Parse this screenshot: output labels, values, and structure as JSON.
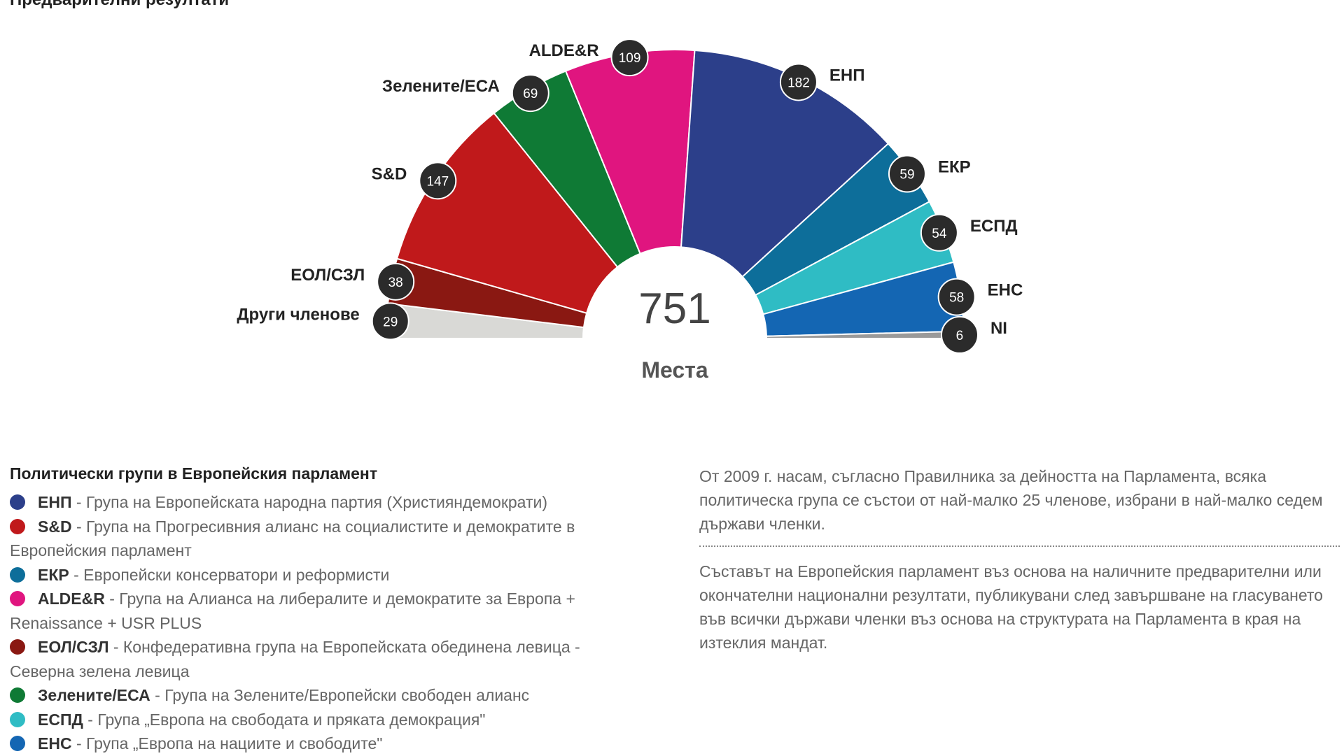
{
  "header": {
    "title": "Предварителни резултати"
  },
  "chart_data": {
    "type": "pie",
    "variant": "semicircle-parliament",
    "center_value": "751",
    "center_label": "Места",
    "total": 751,
    "slices": [
      {
        "label": "Други членове",
        "value": 29,
        "color": "#d9d9d6"
      },
      {
        "label": "ЕОЛ/СЗЛ",
        "value": 38,
        "color": "#8a1812"
      },
      {
        "label": "S&D",
        "value": 147,
        "color": "#c0191b"
      },
      {
        "label": "Зелените/ЕСА",
        "value": 69,
        "color": "#0f7a35"
      },
      {
        "label": "ALDE&R",
        "value": 109,
        "color": "#e0157f"
      },
      {
        "label": "ЕНП",
        "value": 182,
        "color": "#2c3f8a"
      },
      {
        "label": "ЕКР",
        "value": 59,
        "color": "#0d6e9a"
      },
      {
        "label": "ЕСПД",
        "value": 54,
        "color": "#2fbcc4"
      },
      {
        "label": "ЕНС",
        "value": 58,
        "color": "#1466b3"
      },
      {
        "label": "NI",
        "value": 6,
        "color": "#9a9a9a"
      }
    ]
  },
  "legend": {
    "title": "Политически групи в Европейския парламент",
    "items": [
      {
        "abbr": "ЕНП",
        "desc": " - Група на Европейската народна партия (Християндемократи)",
        "color": "#2c3f8a"
      },
      {
        "abbr": "S&D",
        "desc": " - Група на Прогресивния алианс на социалистите и демократите в Европейския парламент",
        "color": "#c0191b"
      },
      {
        "abbr": "ЕКР",
        "desc": " - Европейски консерватори и реформисти",
        "color": "#0d6e9a"
      },
      {
        "abbr": "ALDE&R",
        "desc": " - Група на Алианса на либералите и демократите за Европа + Renaissance + USR PLUS",
        "color": "#e0157f"
      },
      {
        "abbr": "ЕОЛ/СЗЛ",
        "desc": " - Конфедеративна група на Европейската обединена левица - Северна зелена левица",
        "color": "#8a1812"
      },
      {
        "abbr": "Зелените/ЕСА",
        "desc": " - Група на Зелените/Европейски свободен алианс",
        "color": "#0f7a35"
      },
      {
        "abbr": "ЕСПД",
        "desc": " - Група „Европа на свободата и пряката демокрация\"",
        "color": "#2fbcc4"
      },
      {
        "abbr": "ЕНС",
        "desc": " - Група „Европа на нациите и свободите\"",
        "color": "#1466b3"
      }
    ]
  },
  "notes": {
    "p1": "От 2009 г. насам, съгласно Правилника за дейността на Парламента, всяка политическа група се състои от най-малко 25 членове, избрани в най-малко седем държави членки.",
    "p2": "Съставът на Европейския парламент въз основа на наличните предварителни или окончателни национални резултати, публикувани след завършване на гласуването във всички държави членки въз основа на структурата на Парламента в края на изтеклия мандат."
  }
}
